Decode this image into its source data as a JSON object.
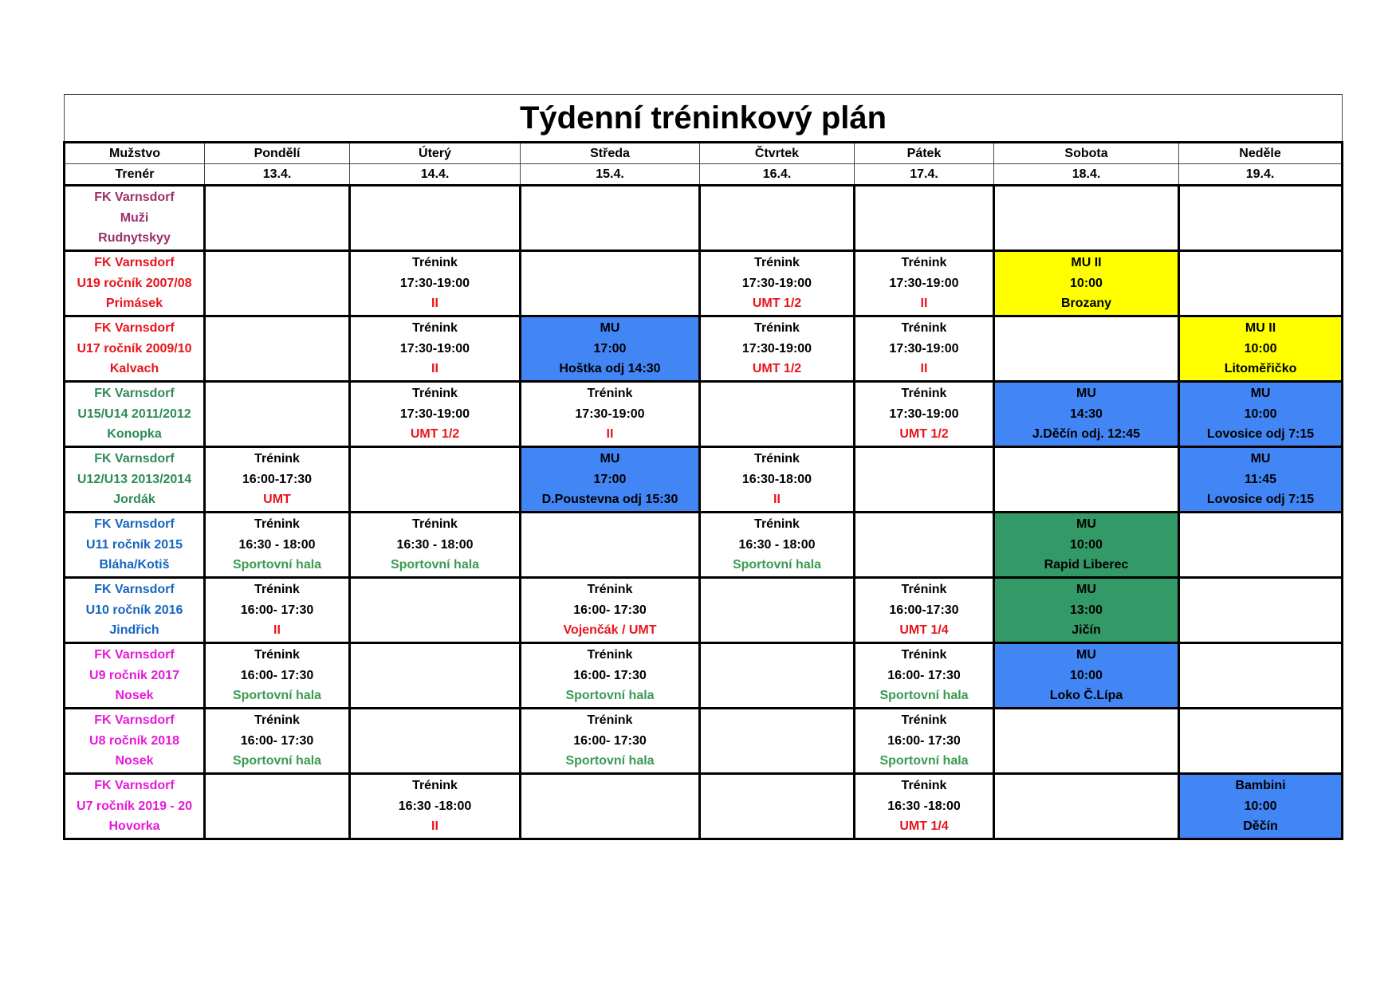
{
  "title": "Týdenní tréninkový plán",
  "colors": {
    "black": "#000000",
    "red": "#e8141b",
    "green": "#3a9a52",
    "teal": "#2e8b57",
    "blue": "#1565c0",
    "magenta": "#e619d8",
    "maroon": "#9b2f6b",
    "bg_yellow": "#ffff00",
    "bg_blue": "#4285f4",
    "bg_green": "#339966"
  },
  "header": {
    "team_label": "Mužstvo",
    "coach_label": "Trenér",
    "days": [
      "Pondělí",
      "Úterý",
      "Středa",
      "Čtvrtek",
      "Pátek",
      "Sobota",
      "Neděle"
    ],
    "dates": [
      "13.4.",
      "14.4.",
      "15.4.",
      "16.4.",
      "17.4.",
      "18.4.",
      "19.4."
    ]
  },
  "rows": [
    {
      "team": [
        "FK Varnsdorf",
        "Muži",
        "Rudnytskyy"
      ],
      "color": "maroon",
      "cells": [
        null,
        null,
        null,
        null,
        null,
        null,
        null
      ]
    },
    {
      "team": [
        "FK Varnsdorf",
        "U19 ročník 2007/08",
        "Primásek"
      ],
      "color": "red",
      "cells": [
        null,
        {
          "lines": [
            [
              "Trénink",
              "black"
            ],
            [
              "17:30-19:00",
              "black"
            ],
            [
              "II",
              "red"
            ]
          ]
        },
        null,
        {
          "lines": [
            [
              "Trénink",
              "black"
            ],
            [
              "17:30-19:00",
              "black"
            ],
            [
              "UMT 1/2",
              "red"
            ]
          ]
        },
        {
          "lines": [
            [
              "Trénink",
              "black"
            ],
            [
              "17:30-19:00",
              "black"
            ],
            [
              "II",
              "red"
            ]
          ]
        },
        {
          "bg": "bg_yellow",
          "lines": [
            [
              "MU II",
              "black"
            ],
            [
              "10:00",
              "black"
            ],
            [
              "Brozany",
              "black"
            ]
          ]
        },
        null
      ]
    },
    {
      "team": [
        "FK Varnsdorf",
        "U17 ročník 2009/10",
        "Kalvach"
      ],
      "color": "red",
      "cells": [
        null,
        {
          "lines": [
            [
              "Trénink",
              "black"
            ],
            [
              "17:30-19:00",
              "black"
            ],
            [
              "II",
              "red"
            ]
          ]
        },
        {
          "bg": "bg_blue",
          "lines": [
            [
              "MU",
              "black"
            ],
            [
              "17:00",
              "black"
            ],
            [
              "Hoštka odj 14:30",
              "black"
            ]
          ]
        },
        {
          "lines": [
            [
              "Trénink",
              "black"
            ],
            [
              "17:30-19:00",
              "black"
            ],
            [
              "UMT 1/2",
              "red"
            ]
          ]
        },
        {
          "lines": [
            [
              "Trénink",
              "black"
            ],
            [
              "17:30-19:00",
              "black"
            ],
            [
              "II",
              "red"
            ]
          ]
        },
        null,
        {
          "bg": "bg_yellow",
          "lines": [
            [
              "MU II",
              "black"
            ],
            [
              "10:00",
              "black"
            ],
            [
              "Litoměřičko",
              "black"
            ]
          ]
        }
      ]
    },
    {
      "team": [
        "FK Varnsdorf",
        "U15/U14 2011/2012",
        "Konopka"
      ],
      "color": "teal",
      "cells": [
        null,
        {
          "lines": [
            [
              "Trénink",
              "black"
            ],
            [
              "17:30-19:00",
              "black"
            ],
            [
              "UMT 1/2",
              "red"
            ]
          ]
        },
        {
          "lines": [
            [
              "Trénink",
              "black"
            ],
            [
              "17:30-19:00",
              "black"
            ],
            [
              "II",
              "red"
            ]
          ]
        },
        null,
        {
          "lines": [
            [
              "Trénink",
              "black"
            ],
            [
              "17:30-19:00",
              "black"
            ],
            [
              "UMT 1/2",
              "red"
            ]
          ]
        },
        {
          "bg": "bg_blue",
          "lines": [
            [
              "MU",
              "black"
            ],
            [
              "14:30",
              "black"
            ],
            [
              "J.Děčín odj. 12:45",
              "black"
            ]
          ]
        },
        {
          "bg": "bg_blue",
          "lines": [
            [
              "MU",
              "black"
            ],
            [
              "10:00",
              "black"
            ],
            [
              "Lovosice odj 7:15",
              "black"
            ]
          ]
        }
      ]
    },
    {
      "team": [
        "FK Varnsdorf",
        "U12/U13 2013/2014",
        "Jordák"
      ],
      "color": "teal",
      "cells": [
        {
          "lines": [
            [
              "Trénink",
              "black"
            ],
            [
              "16:00-17:30",
              "black"
            ],
            [
              "UMT",
              "red"
            ]
          ]
        },
        null,
        {
          "bg": "bg_blue",
          "lines": [
            [
              "MU",
              "black"
            ],
            [
              "17:00",
              "black"
            ],
            [
              "D.Poustevna odj 15:30",
              "black"
            ]
          ]
        },
        {
          "lines": [
            [
              "Trénink",
              "black"
            ],
            [
              "16:30-18:00",
              "black"
            ],
            [
              "II",
              "red"
            ]
          ]
        },
        null,
        null,
        {
          "bg": "bg_blue",
          "lines": [
            [
              "MU",
              "black"
            ],
            [
              "11:45",
              "black"
            ],
            [
              "Lovosice odj 7:15",
              "black"
            ]
          ]
        }
      ]
    },
    {
      "team": [
        "FK Varnsdorf",
        "U11 ročník 2015",
        "Bláha/Kotiš"
      ],
      "color": "blue",
      "cells": [
        {
          "lines": [
            [
              "Trénink",
              "black"
            ],
            [
              "16:30 - 18:00",
              "black"
            ],
            [
              "Sportovní hala",
              "green"
            ]
          ]
        },
        {
          "lines": [
            [
              "Trénink",
              "black"
            ],
            [
              "16:30 - 18:00",
              "black"
            ],
            [
              "Sportovní hala",
              "green"
            ]
          ]
        },
        null,
        {
          "lines": [
            [
              "Trénink",
              "black"
            ],
            [
              "16:30 - 18:00",
              "black"
            ],
            [
              "Sportovní hala",
              "green"
            ]
          ]
        },
        null,
        {
          "bg": "bg_green",
          "lines": [
            [
              "MU",
              "black"
            ],
            [
              "10:00",
              "black"
            ],
            [
              "Rapid Liberec",
              "black"
            ]
          ]
        },
        null
      ]
    },
    {
      "team": [
        "FK Varnsdorf",
        "U10 ročník 2016",
        "Jindřich"
      ],
      "color": "blue",
      "cells": [
        {
          "lines": [
            [
              "Trénink",
              "black"
            ],
            [
              "16:00- 17:30",
              "black"
            ],
            [
              "II",
              "red"
            ]
          ]
        },
        null,
        {
          "lines": [
            [
              "Trénink",
              "black"
            ],
            [
              "16:00- 17:30",
              "black"
            ],
            [
              "Vojenčák / UMT",
              "red"
            ]
          ]
        },
        null,
        {
          "lines": [
            [
              "Trénink",
              "black"
            ],
            [
              "16:00-17:30",
              "black"
            ],
            [
              "UMT 1/4",
              "red"
            ]
          ]
        },
        {
          "bg": "bg_green",
          "lines": [
            [
              "MU",
              "black"
            ],
            [
              "13:00",
              "black"
            ],
            [
              "Jičín",
              "black"
            ]
          ]
        },
        null
      ]
    },
    {
      "team": [
        "FK Varnsdorf",
        "U9 ročník 2017",
        "Nosek"
      ],
      "color": "magenta",
      "cells": [
        {
          "lines": [
            [
              "Trénink",
              "black"
            ],
            [
              "16:00- 17:30",
              "black"
            ],
            [
              "Sportovní hala",
              "green"
            ]
          ]
        },
        null,
        {
          "lines": [
            [
              "Trénink",
              "black"
            ],
            [
              "16:00- 17:30",
              "black"
            ],
            [
              "Sportovní hala",
              "green"
            ]
          ]
        },
        null,
        {
          "lines": [
            [
              "Trénink",
              "black"
            ],
            [
              "16:00- 17:30",
              "black"
            ],
            [
              "Sportovní hala",
              "green"
            ]
          ]
        },
        {
          "bg": "bg_blue",
          "lines": [
            [
              "MU",
              "black"
            ],
            [
              "10:00",
              "black"
            ],
            [
              "Loko Č.Lípa",
              "black"
            ]
          ]
        },
        null
      ]
    },
    {
      "team": [
        "FK Varnsdorf",
        "U8 ročník 2018",
        "Nosek"
      ],
      "color": "magenta",
      "cells": [
        {
          "lines": [
            [
              "Trénink",
              "black"
            ],
            [
              "16:00- 17:30",
              "black"
            ],
            [
              "Sportovní hala",
              "green"
            ]
          ]
        },
        null,
        {
          "lines": [
            [
              "Trénink",
              "black"
            ],
            [
              "16:00- 17:30",
              "black"
            ],
            [
              "Sportovní hala",
              "green"
            ]
          ]
        },
        null,
        {
          "lines": [
            [
              "Trénink",
              "black"
            ],
            [
              "16:00- 17:30",
              "black"
            ],
            [
              "Sportovní hala",
              "green"
            ]
          ]
        },
        null,
        null
      ]
    },
    {
      "team": [
        "FK Varnsdorf",
        "U7 ročník 2019 - 20",
        "Hovorka"
      ],
      "color": "magenta",
      "cells": [
        null,
        {
          "lines": [
            [
              "Trénink",
              "black"
            ],
            [
              "16:30 -18:00",
              "black"
            ],
            [
              "II",
              "red"
            ]
          ]
        },
        null,
        null,
        {
          "lines": [
            [
              "Trénink",
              "black"
            ],
            [
              "16:30 -18:00",
              "black"
            ],
            [
              "UMT 1/4",
              "red"
            ]
          ]
        },
        null,
        {
          "bg": "bg_blue",
          "lines": [
            [
              "Bambini",
              "black"
            ],
            [
              "10:00",
              "black"
            ],
            [
              "Děčín",
              "black"
            ]
          ]
        }
      ]
    }
  ]
}
